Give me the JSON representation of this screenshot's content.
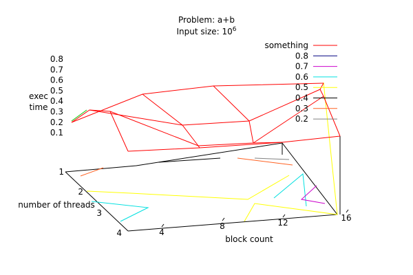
{
  "chart_data": {
    "type": "surface",
    "title": "Problem: a+b",
    "subtitle_prefix": "Input size: 10",
    "subtitle_exp": "6",
    "zlabel": [
      "exec",
      "time"
    ],
    "xlabel": "block count",
    "ylabel": "number of threads",
    "z_ticks": [
      "0.8",
      "0.7",
      "0.6",
      "0.5",
      "0.4",
      "0.3",
      "0.2",
      "0.1"
    ],
    "x_ticks": [
      "4",
      "8",
      "12",
      "16"
    ],
    "y_ticks": [
      "1",
      "2",
      "3",
      "4"
    ],
    "legend": [
      {
        "label": "something",
        "color": "#ff0000"
      },
      {
        "label": "0.8",
        "color": "#000080"
      },
      {
        "label": "0.7",
        "color": "#cc00cc"
      },
      {
        "label": "0.6",
        "color": "#00e0e0"
      },
      {
        "label": "0.5",
        "color": "#ffff00"
      },
      {
        "label": "0.4",
        "color": "#000000"
      },
      {
        "label": "0.3",
        "color": "#ff6020"
      },
      {
        "label": "0.2",
        "color": "#808080"
      }
    ],
    "surface_color": "#ff0000",
    "x": [
      4,
      8,
      12,
      16
    ],
    "y": [
      1,
      2,
      3,
      4
    ],
    "z": [
      [
        0.2,
        0.3,
        0.35,
        0.55
      ],
      [
        0.25,
        0.45,
        0.6,
        0.4
      ],
      [
        0.28,
        0.55,
        0.5,
        0.45
      ],
      [
        0.3,
        0.4,
        0.38,
        0.35
      ]
    ],
    "zlim": [
      0,
      0.8
    ]
  }
}
